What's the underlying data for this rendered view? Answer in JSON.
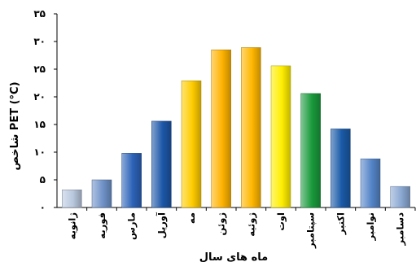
{
  "chart_data": {
    "type": "bar",
    "categories": [
      "ژانویه",
      "فوریه",
      "مارس",
      "آوریل",
      "مه",
      "ژوئن",
      "ژوئیه",
      "اوت",
      "سپتامبر",
      "اکتبر",
      "نوامبر",
      "دسامبر"
    ],
    "values": [
      3.2,
      5.0,
      9.8,
      15.6,
      22.9,
      28.5,
      28.9,
      25.6,
      20.6,
      14.2,
      8.8,
      3.8
    ],
    "ylabel": "شاخص PET (°C)",
    "xlabel": "ماه های سال",
    "ylim": [
      0,
      35
    ],
    "yticks": [
      "٠",
      "۵",
      "١٠",
      "١۵",
      "٢٠",
      "٢۵",
      "٣٠",
      "٣۵"
    ],
    "grid": false,
    "legend": false,
    "bar_colors": [
      "#b9c8de",
      "#6f92c8",
      "#2c63b8",
      "#1d57a8",
      "#ffcc00",
      "#ffb300",
      "#ffb700",
      "#ffee00",
      "#1a9a3c",
      "#1a5aa8",
      "#5585c8",
      "#8aa8d2"
    ]
  }
}
